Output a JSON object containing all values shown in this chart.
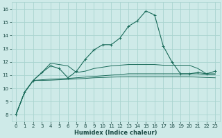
{
  "xlabel": "Humidex (Indice chaleur)",
  "bg_color": "#ceeae8",
  "grid_color": "#aad4d0",
  "line_color": "#1a6b5a",
  "text_color": "#1a4a44",
  "xlim": [
    -0.5,
    23.5
  ],
  "ylim": [
    7.5,
    16.5
  ],
  "xticks": [
    0,
    1,
    2,
    3,
    4,
    5,
    6,
    7,
    8,
    9,
    10,
    11,
    12,
    13,
    14,
    15,
    16,
    17,
    18,
    19,
    20,
    21,
    22,
    23
  ],
  "yticks": [
    8,
    9,
    10,
    11,
    12,
    13,
    14,
    15,
    16
  ],
  "series1": [
    8.0,
    9.7,
    10.6,
    11.2,
    11.7,
    11.5,
    10.8,
    11.3,
    12.2,
    12.9,
    13.3,
    13.3,
    13.8,
    14.7,
    15.1,
    15.85,
    15.55,
    13.2,
    12.0,
    11.1,
    11.1,
    11.2,
    11.1,
    11.3
  ],
  "series2": [
    8.0,
    9.7,
    10.6,
    11.2,
    11.9,
    11.8,
    11.7,
    11.2,
    11.3,
    11.5,
    11.6,
    11.7,
    11.75,
    11.8,
    11.8,
    11.8,
    11.8,
    11.75,
    11.75,
    11.75,
    11.75,
    11.5,
    11.1,
    11.1
  ],
  "series3": [
    8.0,
    9.7,
    10.6,
    10.65,
    10.7,
    10.72,
    10.75,
    10.8,
    10.85,
    10.9,
    10.95,
    11.0,
    11.05,
    11.1,
    11.1,
    11.1,
    11.1,
    11.1,
    11.1,
    11.1,
    11.1,
    11.1,
    11.05,
    11.05
  ],
  "series4": [
    8.0,
    9.7,
    10.6,
    10.6,
    10.62,
    10.65,
    10.68,
    10.72,
    10.75,
    10.8,
    10.82,
    10.85,
    10.87,
    10.88,
    10.88,
    10.88,
    10.88,
    10.88,
    10.88,
    10.88,
    10.88,
    10.85,
    10.82,
    10.8
  ]
}
